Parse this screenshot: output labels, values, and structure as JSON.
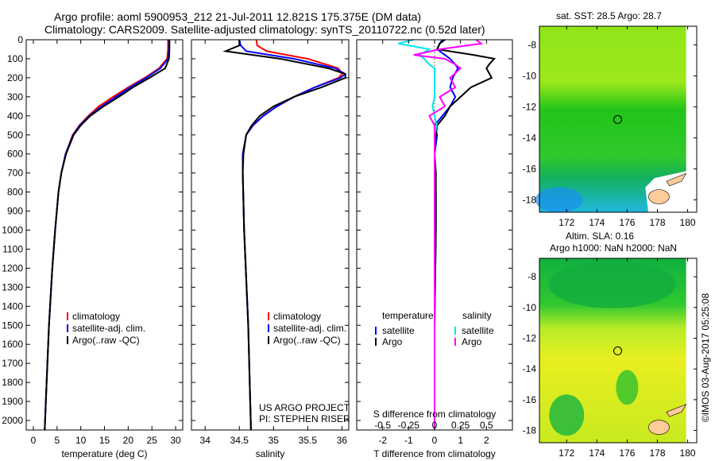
{
  "title_line1": "Argo profile: aoml 5900953_212 21-Jul-2011 12.821S 175.375E (DM data)",
  "title_line2": "Climatology: CARS2009. Satellite-adjusted climatology: synTS_20110722.nc (0.52d later)",
  "timestamp": "©IMOS 03-Aug-2017 05:25:08",
  "project_line1": "US ARGO PROJECT",
  "project_line2": "PI: STEPHEN RISER",
  "colors": {
    "climatology": "#ff0000",
    "satellite": "#0000ff",
    "argo": "#000000",
    "sal_satellite": "#00e5ee",
    "sal_argo": "#ff00ff"
  },
  "chart_data": [
    {
      "type": "line",
      "name": "temperature",
      "xlabel": "temperature (deg C)",
      "xlim": [
        -1.5,
        31.5
      ],
      "ylim": [
        2050,
        0
      ],
      "xticks": [
        0,
        5,
        10,
        15,
        20,
        25,
        30
      ],
      "yticks": [
        0,
        100,
        200,
        300,
        400,
        500,
        600,
        700,
        800,
        900,
        1000,
        1100,
        1200,
        1300,
        1400,
        1500,
        1600,
        1700,
        1800,
        1900,
        2000
      ],
      "legend": [
        "climatology",
        "satellite-adj. clim.",
        "Argo(..raw -QC)"
      ],
      "depth": [
        0,
        50,
        100,
        150,
        200,
        250,
        300,
        350,
        400,
        450,
        500,
        600,
        700,
        800,
        1000,
        1200,
        1500,
        1800,
        2050
      ],
      "series": [
        {
          "name": "climatology",
          "values": [
            28.4,
            28.4,
            28.2,
            26.5,
            23.5,
            20.0,
            16.8,
            13.8,
            11.6,
            9.7,
            8.3,
            6.8,
            5.9,
            5.3,
            4.6,
            4.0,
            3.3,
            2.8,
            2.4
          ]
        },
        {
          "name": "satellite-adj. clim.",
          "values": [
            28.6,
            28.6,
            28.4,
            26.8,
            23.8,
            20.4,
            17.4,
            14.4,
            11.8,
            9.8,
            8.4,
            6.8,
            5.9,
            5.3,
            4.6,
            4.0,
            3.3,
            2.8,
            2.4
          ]
        },
        {
          "name": "Argo(..raw -QC)",
          "values": [
            28.7,
            28.7,
            28.6,
            27.8,
            24.5,
            21.0,
            18.0,
            14.8,
            12.0,
            10.0,
            8.5,
            6.9,
            5.9,
            5.3,
            4.6,
            4.0,
            3.3,
            2.8,
            2.4
          ]
        }
      ]
    },
    {
      "type": "line",
      "name": "salinity",
      "xlabel": "salinity",
      "xlim": [
        33.8,
        36.1
      ],
      "ylim": [
        2050,
        0
      ],
      "xticks": [
        34,
        34.5,
        35,
        35.5,
        36
      ],
      "legend": [
        "climatology",
        "satellite-adj. clim.",
        "Argo(..raw -QC)"
      ],
      "depth": [
        0,
        30,
        60,
        100,
        150,
        180,
        200,
        250,
        300,
        350,
        400,
        450,
        500,
        600,
        700,
        1000,
        1500,
        2050
      ],
      "series": [
        {
          "name": "climatology",
          "values": [
            34.75,
            34.76,
            34.9,
            35.5,
            35.95,
            36.0,
            35.95,
            35.6,
            35.3,
            35.05,
            34.85,
            34.7,
            34.6,
            34.55,
            34.55,
            34.57,
            34.63,
            34.67
          ]
        },
        {
          "name": "satellite-adj. clim.",
          "values": [
            34.5,
            34.52,
            34.6,
            35.3,
            35.9,
            36.05,
            35.98,
            35.6,
            35.3,
            35.05,
            34.85,
            34.7,
            34.6,
            34.55,
            34.55,
            34.57,
            34.63,
            34.67
          ]
        },
        {
          "name": "Argo(..raw -QC)",
          "values": [
            34.5,
            34.5,
            34.3,
            35.1,
            35.8,
            36.05,
            36.05,
            35.7,
            35.3,
            35.0,
            34.8,
            34.68,
            34.6,
            34.56,
            34.55,
            34.57,
            34.63,
            34.67
          ]
        }
      ]
    },
    {
      "type": "line",
      "name": "difference",
      "xlabel": "T difference from climatology",
      "x2label": "S difference from climatology",
      "xlim": [
        -3,
        3
      ],
      "x2lim": [
        -0.75,
        0.75
      ],
      "ylim": [
        2050,
        0
      ],
      "xticks": [
        -2,
        -1,
        0,
        1,
        2
      ],
      "x2ticks": [
        -0.5,
        -0.25,
        0,
        0.25,
        0.5
      ],
      "legend_groups": [
        "temperature",
        "salinity"
      ],
      "legend": [
        "satellite",
        "Argo",
        "satellite",
        "Argo"
      ],
      "depth": [
        0,
        20,
        50,
        80,
        100,
        130,
        150,
        200,
        250,
        300,
        350,
        400,
        450,
        500,
        600,
        700,
        800,
        1000,
        1500,
        2050
      ],
      "series": [
        {
          "name": "T satellite",
          "values": [
            0.3,
            0.2,
            0.1,
            0.4,
            0.6,
            0.8,
            0.9,
            0.7,
            0.6,
            0.8,
            0.6,
            0.3,
            0.0,
            0.1,
            0.0,
            0.0,
            0.05,
            0.05,
            0.0,
            0.0
          ]
        },
        {
          "name": "T Argo",
          "values": [
            0.4,
            0.2,
            0.1,
            1.5,
            2.3,
            2.1,
            2.0,
            2.2,
            1.4,
            1.0,
            0.6,
            0.4,
            0.1,
            0.05,
            0.0,
            0.05,
            0.05,
            0.05,
            0.0,
            0.0
          ]
        },
        {
          "name": "S satellite",
          "values": [
            -0.2,
            -0.35,
            -0.05,
            -0.15,
            -0.1,
            -0.05,
            0.0,
            0.0,
            0.0,
            0.0,
            -0.02,
            0.0,
            0.02,
            0.0,
            0.0,
            0.0,
            0.0,
            0.0,
            0.0,
            0.0
          ]
        },
        {
          "name": "S Argo",
          "values": [
            0.4,
            0.45,
            0.05,
            -0.2,
            0.1,
            0.2,
            0.25,
            0.15,
            0.2,
            0.05,
            0.1,
            -0.05,
            0.0,
            0.0,
            0.0,
            0.0,
            0.0,
            0.0,
            0.0,
            0.0
          ]
        }
      ]
    },
    {
      "type": "heatmap",
      "name": "sst-map",
      "title": "sat. SST: 28.5 Argo: 28.7",
      "xticks": [
        172,
        174,
        176,
        178,
        180
      ],
      "yticks": [
        -8,
        -10,
        -12,
        -14,
        -16,
        -18
      ],
      "xlim": [
        170.2,
        180.6
      ],
      "ylim": [
        -6.8,
        -18.8
      ],
      "argo_position": [
        175.375,
        -12.821
      ]
    },
    {
      "type": "heatmap",
      "name": "sla-map",
      "title1": "Altim. SLA: 0.16",
      "title2": "Argo h1000: NaN h2000: NaN",
      "xticks": [
        172,
        174,
        176,
        178,
        180
      ],
      "yticks": [
        -8,
        -10,
        -12,
        -14,
        -16,
        -18
      ],
      "xlim": [
        170.2,
        180.6
      ],
      "ylim": [
        -6.8,
        -18.8
      ],
      "argo_position": [
        175.375,
        -12.821
      ]
    }
  ]
}
